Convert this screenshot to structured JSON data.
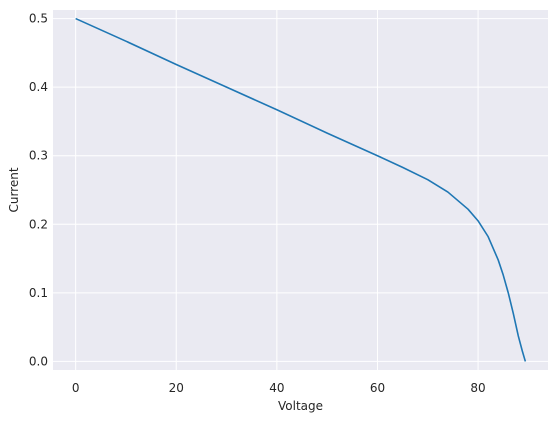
{
  "chart_data": {
    "type": "line",
    "title": "",
    "xlabel": "Voltage",
    "ylabel": "Current",
    "xlim": [
      -4.5,
      93.9
    ],
    "ylim": [
      -0.0125,
      0.5125
    ],
    "x_ticks": [
      0,
      20,
      40,
      60,
      80
    ],
    "y_ticks": [
      0.0,
      0.1,
      0.2,
      0.3,
      0.4,
      0.5
    ],
    "x_tick_labels": [
      "0",
      "20",
      "40",
      "60",
      "80"
    ],
    "y_tick_labels": [
      "0.0",
      "0.1",
      "0.2",
      "0.3",
      "0.4",
      "0.5"
    ],
    "grid": true,
    "legend": "none",
    "colors": {
      "background": "#eaeaf2",
      "grid": "#ffffff",
      "line": "#1f77b4"
    },
    "series": [
      {
        "x": [
          0,
          10,
          20,
          30,
          40,
          50,
          60,
          65,
          70,
          74,
          78,
          80,
          82,
          84,
          85,
          86,
          87,
          88,
          88.8,
          89.4
        ],
        "values": [
          0.5,
          0.467,
          0.433,
          0.4,
          0.367,
          0.333,
          0.3,
          0.283,
          0.265,
          0.247,
          0.222,
          0.205,
          0.182,
          0.148,
          0.126,
          0.1,
          0.07,
          0.037,
          0.015,
          0.0
        ]
      }
    ]
  }
}
